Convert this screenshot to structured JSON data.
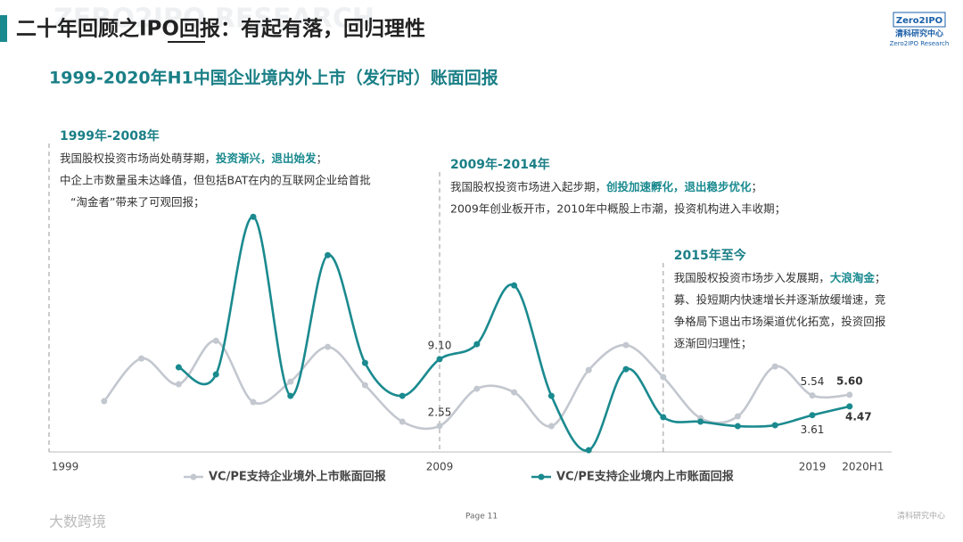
{
  "header": {
    "title": "二十年回顾之IPO回报：有起有落，回归理性",
    "watermark": "ZERO2IPO RESEARCH",
    "logo": {
      "mark": "Zero2IPO",
      "name": "清科研究中心",
      "english": "Zero2IPO Research"
    }
  },
  "chart_data": {
    "type": "line",
    "title": "1999-2020年H1中国企业境内外上市（发行时）账面回报",
    "categories": [
      "1999",
      null,
      null,
      null,
      null,
      null,
      null,
      null,
      null,
      null,
      "2009",
      null,
      null,
      null,
      null,
      null,
      null,
      null,
      null,
      null,
      "2019",
      "2020H1"
    ],
    "ylim": [
      0,
      25
    ],
    "series": [
      {
        "name": "VC/PE支持企业境外上市账面回报",
        "color": "#c3c7cf",
        "values": [
          null,
          4.98,
          9.17,
          6.64,
          10.9,
          4.89,
          6.9,
          10.3,
          6.55,
          2.97,
          2.55,
          6.2,
          5.85,
          2.53,
          8.03,
          10.48,
          7.34,
          3.32,
          3.49,
          8.38,
          5.54,
          5.6
        ],
        "value_labels": [
          null,
          null,
          null,
          null,
          null,
          null,
          null,
          null,
          null,
          null,
          "2.55",
          null,
          null,
          null,
          null,
          null,
          null,
          null,
          null,
          null,
          "5.54",
          "5.60"
        ]
      },
      {
        "name": "VC/PE支持企业境内上市账面回报",
        "color": "#1a8a8f",
        "values": [
          null,
          null,
          null,
          8.3,
          7.6,
          23.06,
          5.5,
          19.3,
          8.73,
          5.5,
          9.1,
          10.57,
          16.33,
          5.5,
          0.17,
          8.12,
          3.41,
          2.97,
          2.53,
          2.62,
          3.61,
          4.47
        ],
        "value_labels": [
          null,
          null,
          null,
          null,
          null,
          null,
          null,
          null,
          null,
          null,
          "9.10",
          null,
          null,
          null,
          null,
          null,
          null,
          null,
          null,
          null,
          "3.61",
          "4.47"
        ]
      }
    ],
    "periods": [
      {
        "title": "1999年-2008年",
        "lines": [
          [
            "我国股权投资市场尚处萌芽期，",
            "投资渐兴，退出始发",
            "；"
          ],
          [
            "中企上市数量虽未达峰值，但包括BAT在内的互联网企业给首批"
          ],
          [
            "“淘金者”带来了可观回报；"
          ]
        ]
      },
      {
        "title": "2009年-2014年",
        "lines": [
          [
            "我国股权投资市场进入起步期，",
            "创投加速孵化，退出稳步优化",
            "；"
          ],
          [
            "2009年创业板开市，2010年中概股上市潮，投资机构进入丰收期；"
          ]
        ]
      },
      {
        "title": "2015年至今",
        "lines": [
          [
            "我国股权投资市场步入发展期，",
            "大浪淘金",
            "；"
          ],
          [
            "募、投短期内快速增长并逐渐放缓增速，竞"
          ],
          [
            "争格局下退出市场渠道优化拓宽，投资回报"
          ],
          [
            "逐渐回归理性；"
          ]
        ]
      }
    ]
  },
  "footer": {
    "page": "Page  11",
    "watermark": "大数跨境",
    "brand": "清科研究中心"
  }
}
